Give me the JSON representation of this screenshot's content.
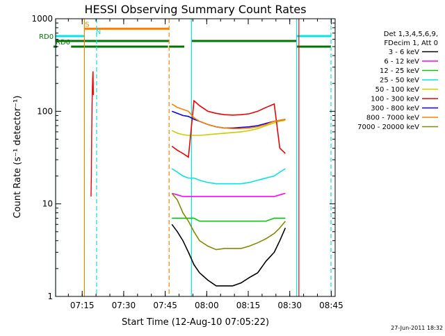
{
  "chart_data": {
    "type": "line",
    "title": "HESSI Observing Summary Count Rates",
    "xlabel": "Start Time (12-Aug-10 07:05:22)",
    "ylabel": "Count Rate (s⁻¹ detector⁻¹)",
    "yscale": "log",
    "ylim": [
      1,
      1000
    ],
    "xlim_minutes_after_start": [
      0,
      101
    ],
    "grid": false,
    "legend_position": "right",
    "footer": "27-Jun-2011 18:32",
    "x_ticks": [
      {
        "label": "07:15",
        "minute": 9.6
      },
      {
        "label": "07:30",
        "minute": 24.6
      },
      {
        "label": "07:45",
        "minute": 39.6
      },
      {
        "label": "08:00",
        "minute": 54.6
      },
      {
        "label": "08:15",
        "minute": 69.6
      },
      {
        "label": "08:30",
        "minute": 84.6
      },
      {
        "label": "08:45",
        "minute": 99.6
      }
    ],
    "y_ticks": [
      {
        "label": "1",
        "value": 1
      },
      {
        "label": "10",
        "value": 10
      },
      {
        "label": "100",
        "value": 100
      },
      {
        "label": "1000",
        "value": 1000
      }
    ],
    "legend_header": [
      "Det 1,3,4,5,6,9,",
      "FDecim 1, Att 0"
    ],
    "series": [
      {
        "name": "3 - 6 keV",
        "color": "#000000",
        "x": [
          42,
          44,
          46,
          48,
          50,
          52,
          55,
          58,
          61,
          64,
          67,
          70,
          73,
          76,
          79,
          81,
          83
        ],
        "y": [
          6,
          5,
          4,
          3,
          2.2,
          1.8,
          1.5,
          1.3,
          1.3,
          1.3,
          1.4,
          1.6,
          1.8,
          2.4,
          3,
          4,
          5.5
        ]
      },
      {
        "name": "6 - 12 keV",
        "color": "#ff00ff",
        "x": [
          42,
          44,
          46,
          48,
          50,
          52,
          55,
          58,
          61,
          64,
          67,
          70,
          73,
          76,
          79,
          81,
          83
        ],
        "y": [
          13,
          12.5,
          12,
          12,
          12,
          12,
          12,
          12,
          12,
          12,
          12,
          12,
          12,
          12,
          12,
          12.5,
          13
        ]
      },
      {
        "name": "12 - 25 keV",
        "color": "#00cc00",
        "x": [
          42,
          44,
          46,
          48,
          50,
          52,
          55,
          58,
          61,
          64,
          67,
          70,
          73,
          76,
          79,
          81,
          83
        ],
        "y": [
          7,
          7,
          7,
          7,
          7,
          6.5,
          6.5,
          6.5,
          6.5,
          6.5,
          6.5,
          6.5,
          6.5,
          6.5,
          7,
          7,
          7
        ]
      },
      {
        "name": "25 - 50 keV",
        "color": "#00e5e5",
        "x": [
          42,
          44,
          46,
          48,
          50,
          52,
          55,
          58,
          61,
          64,
          67,
          70,
          73,
          76,
          79,
          81,
          83
        ],
        "y": [
          24,
          22,
          20,
          19,
          19,
          18,
          17,
          16.5,
          16.5,
          16.5,
          16.5,
          17,
          18,
          19,
          20,
          22,
          24
        ]
      },
      {
        "name": "50 - 100 keV",
        "color": "#cccc00",
        "x": [
          42,
          44,
          46,
          48,
          50,
          52,
          55,
          58,
          61,
          64,
          67,
          70,
          73,
          76,
          79,
          81,
          83
        ],
        "y": [
          62,
          58,
          56,
          55,
          55,
          55,
          56,
          57,
          58,
          59,
          60,
          62,
          65,
          70,
          75,
          78,
          80
        ]
      },
      {
        "name": "100 - 300 keV",
        "color": "#ee0000",
        "x": [
          42,
          44,
          46,
          48,
          50,
          52,
          55,
          58,
          61,
          64,
          67,
          70,
          73,
          76,
          79,
          81,
          83
        ],
        "y": [
          42,
          38,
          35,
          32,
          130,
          115,
          100,
          95,
          92,
          91,
          92,
          94,
          100,
          110,
          120,
          40,
          35
        ]
      },
      {
        "name": "300 - 800 keV",
        "color": "#0000ee",
        "x": [
          42,
          44,
          46,
          48,
          50,
          52,
          55,
          58,
          61,
          64,
          67,
          70,
          73,
          76,
          79,
          81,
          83
        ],
        "y": [
          100,
          95,
          90,
          88,
          82,
          78,
          72,
          68,
          66,
          66,
          67,
          68,
          70,
          74,
          78,
          80,
          82
        ]
      },
      {
        "name": "800 - 7000 keV",
        "color": "#ff8000",
        "x": [
          42,
          44,
          46,
          48,
          50,
          52,
          55,
          58,
          61,
          64,
          67,
          70,
          73,
          76,
          79,
          81,
          83
        ],
        "y": [
          120,
          110,
          105,
          100,
          85,
          78,
          72,
          68,
          66,
          65,
          65,
          66,
          68,
          72,
          78,
          80,
          82
        ]
      },
      {
        "name": "7000 - 20000 keV",
        "color": "#888800",
        "x": [
          42,
          44,
          46,
          48,
          50,
          52,
          55,
          58,
          61,
          64,
          67,
          70,
          73,
          76,
          79,
          81,
          83
        ],
        "y": [
          13,
          11,
          8,
          6.5,
          5,
          4,
          3.5,
          3.2,
          3.3,
          3.3,
          3.3,
          3.5,
          3.8,
          4.2,
          4.8,
          5.5,
          6.5
        ]
      }
    ],
    "flare_spike": {
      "minute": 12.8,
      "values": [
        12,
        20,
        60,
        120,
        180,
        230,
        270,
        150
      ]
    },
    "flags": [
      {
        "label": "S",
        "color": "#ff8000",
        "segments": [
          [
            10.4,
            41.0
          ]
        ],
        "level": 780,
        "label_minute": 10.6
      },
      {
        "label": "N",
        "color": "#00e5e5",
        "segments": [
          [
            0,
            10.4
          ],
          [
            87.1,
            99.5
          ]
        ],
        "level": 650,
        "label_minute": 14.5
      },
      {
        "label": "RD0",
        "color": "#007700",
        "segments": [
          [
            0,
            41.0
          ],
          [
            49.1,
            87.1
          ]
        ],
        "level": 575,
        "label_minute": -6.0
      },
      {
        "label": "RD6",
        "color": "#007700",
        "segments": [
          [
            -0.8,
            0.5
          ],
          [
            5.6,
            40.6
          ],
          [
            41.0,
            46.5
          ],
          [
            87.1,
            99.5
          ]
        ],
        "level": 500,
        "label_minute": 0.0
      }
    ],
    "vlines": [
      {
        "minute": 0.0,
        "color": "#00e5e5",
        "dash": "solid"
      },
      {
        "minute": 10.4,
        "color": "#ff8000",
        "dash": "solid"
      },
      {
        "minute": 14.8,
        "color": "#00e5e5",
        "dash": "dash"
      },
      {
        "minute": 41.0,
        "color": "#ff8000",
        "dash": "dash"
      },
      {
        "minute": 49.1,
        "color": "#00e5e5",
        "dash": "solid"
      },
      {
        "minute": 87.1,
        "color": "#00e5e5",
        "dash": "solid"
      },
      {
        "minute": 87.9,
        "color": "#ee0000",
        "dash": "solid"
      },
      {
        "minute": 99.5,
        "color": "#00e5e5",
        "dash": "dash"
      }
    ]
  }
}
